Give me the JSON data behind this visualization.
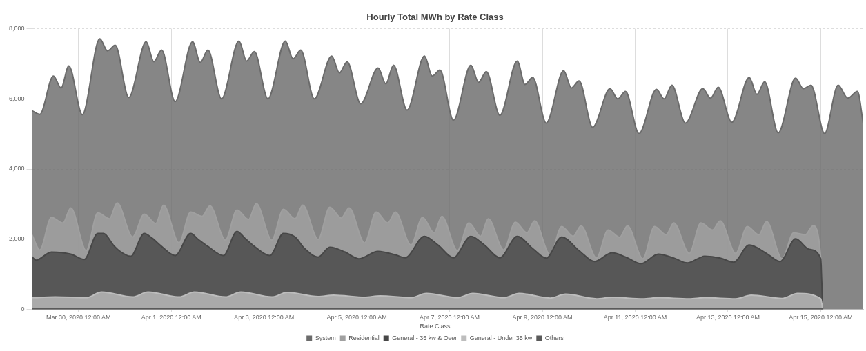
{
  "chart_data": {
    "type": "area",
    "title": "Hourly Total MWh by Rate Class",
    "legend_title": "Rate Class",
    "legend": "bottom",
    "grid": true,
    "xlim": [
      "2020-03-29T00:00",
      "2020-04-15T22:00"
    ],
    "xticks": [
      {
        "value": "2020-03-30T00:00",
        "label": "Mar 30, 2020 12:00 AM"
      },
      {
        "value": "2020-04-01T00:00",
        "label": "Apr 1, 2020 12:00 AM"
      },
      {
        "value": "2020-04-03T00:00",
        "label": "Apr 3, 2020 12:00 AM"
      },
      {
        "value": "2020-04-05T00:00",
        "label": "Apr 5, 2020 12:00 AM"
      },
      {
        "value": "2020-04-07T00:00",
        "label": "Apr 7, 2020 12:00 AM"
      },
      {
        "value": "2020-04-09T00:00",
        "label": "Apr 9, 2020 12:00 AM"
      },
      {
        "value": "2020-04-11T00:00",
        "label": "Apr 11, 2020 12:00 AM"
      },
      {
        "value": "2020-04-13T00:00",
        "label": "Apr 13, 2020 12:00 AM"
      },
      {
        "value": "2020-04-15T00:00",
        "label": "Apr 15, 2020 12:00 AM"
      }
    ],
    "ylim": [
      0,
      8000
    ],
    "yticks": [
      0,
      {
        "value": 2000,
        "label": "2,000"
      },
      {
        "value": 4000,
        "label": "4,000"
      },
      {
        "value": 6000,
        "label": "6,000"
      },
      {
        "value": 8000,
        "label": "8,000"
      }
    ],
    "series": [
      {
        "name": "System",
        "color": "#6b6b6b",
        "x": [
          "2020-03-29T00:00",
          "2020-03-29T04:00",
          "2020-03-29T11:00",
          "2020-03-29T15:00",
          "2020-03-29T19:00",
          "2020-03-30T02:00",
          "2020-03-30T11:00",
          "2020-03-30T15:00",
          "2020-03-30T19:00",
          "2020-03-31T02:00",
          "2020-03-31T11:00",
          "2020-03-31T15:00",
          "2020-03-31T19:00",
          "2020-04-01T02:00",
          "2020-04-01T11:00",
          "2020-04-01T15:00",
          "2020-04-01T19:00",
          "2020-04-02T02:00",
          "2020-04-02T11:00",
          "2020-04-02T15:00",
          "2020-04-02T19:00",
          "2020-04-03T02:00",
          "2020-04-03T11:00",
          "2020-04-03T15:00",
          "2020-04-03T19:00",
          "2020-04-04T02:00",
          "2020-04-04T11:00",
          "2020-04-04T15:00",
          "2020-04-04T19:00",
          "2020-04-05T02:00",
          "2020-04-05T11:00",
          "2020-04-05T15:00",
          "2020-04-05T19:00",
          "2020-04-06T02:00",
          "2020-04-06T11:00",
          "2020-04-06T15:00",
          "2020-04-06T19:00",
          "2020-04-07T02:00",
          "2020-04-07T11:00",
          "2020-04-07T15:00",
          "2020-04-07T19:00",
          "2020-04-08T02:00",
          "2020-04-08T11:00",
          "2020-04-08T15:00",
          "2020-04-08T19:00",
          "2020-04-09T02:00",
          "2020-04-09T11:00",
          "2020-04-09T15:00",
          "2020-04-09T19:00",
          "2020-04-10T02:00",
          "2020-04-10T11:00",
          "2020-04-10T15:00",
          "2020-04-10T19:00",
          "2020-04-11T02:00",
          "2020-04-11T11:00",
          "2020-04-11T15:00",
          "2020-04-11T19:00",
          "2020-04-12T02:00",
          "2020-04-12T11:00",
          "2020-04-12T15:00",
          "2020-04-12T19:00",
          "2020-04-13T02:00",
          "2020-04-13T11:00",
          "2020-04-13T15:00",
          "2020-04-13T19:00",
          "2020-04-14T02:00",
          "2020-04-14T11:00",
          "2020-04-14T15:00",
          "2020-04-14T19:00",
          "2020-04-15T02:00",
          "2020-04-15T09:00",
          "2020-04-15T14:00",
          "2020-04-15T19:00",
          "2020-04-15T22:00"
        ],
        "values": [
          5660,
          5560,
          6650,
          6310,
          6940,
          5550,
          7710,
          7370,
          7530,
          6040,
          7630,
          7060,
          7390,
          5920,
          7630,
          7040,
          7390,
          6000,
          7650,
          7080,
          7350,
          6000,
          7650,
          7140,
          7390,
          6000,
          7220,
          6740,
          7060,
          5860,
          6880,
          6430,
          6960,
          5680,
          7220,
          6650,
          6820,
          5390,
          6960,
          6470,
          6780,
          5530,
          7080,
          6410,
          6610,
          5310,
          6800,
          6310,
          6510,
          5190,
          6290,
          6000,
          6210,
          5010,
          6270,
          6000,
          6390,
          5310,
          6290,
          6020,
          6330,
          5330,
          6610,
          6130,
          6490,
          5030,
          6590,
          6290,
          6390,
          5010,
          6390,
          6020,
          6210,
          5300
        ]
      },
      {
        "name": "Residential",
        "color": "#a0a0a0",
        "x": [
          "2020-03-29T00:00",
          "2020-03-29T04:00",
          "2020-03-29T10:00",
          "2020-03-29T16:00",
          "2020-03-29T20:00",
          "2020-03-30T04:00",
          "2020-03-30T10:00",
          "2020-03-30T16:00",
          "2020-03-30T20:00",
          "2020-03-31T04:00",
          "2020-03-31T10:00",
          "2020-03-31T16:00",
          "2020-03-31T20:00",
          "2020-04-01T04:00",
          "2020-04-01T10:00",
          "2020-04-01T16:00",
          "2020-04-01T20:00",
          "2020-04-02T04:00",
          "2020-04-02T10:00",
          "2020-04-02T16:00",
          "2020-04-02T20:00",
          "2020-04-03T04:00",
          "2020-04-03T10:00",
          "2020-04-03T16:00",
          "2020-04-03T20:00",
          "2020-04-04T04:00",
          "2020-04-04T10:00",
          "2020-04-04T16:00",
          "2020-04-04T20:00",
          "2020-04-05T04:00",
          "2020-04-05T10:00",
          "2020-04-05T16:00",
          "2020-04-05T20:00",
          "2020-04-06T04:00",
          "2020-04-06T10:00",
          "2020-04-06T16:00",
          "2020-04-06T20:00",
          "2020-04-07T04:00",
          "2020-04-07T10:00",
          "2020-04-07T16:00",
          "2020-04-07T20:00",
          "2020-04-08T04:00",
          "2020-04-08T10:00",
          "2020-04-08T16:00",
          "2020-04-08T20:00",
          "2020-04-09T04:00",
          "2020-04-09T10:00",
          "2020-04-09T16:00",
          "2020-04-09T20:00",
          "2020-04-10T04:00",
          "2020-04-10T10:00",
          "2020-04-10T16:00",
          "2020-04-10T20:00",
          "2020-04-11T04:00",
          "2020-04-11T10:00",
          "2020-04-11T16:00",
          "2020-04-11T20:00",
          "2020-04-12T04:00",
          "2020-04-12T10:00",
          "2020-04-12T16:00",
          "2020-04-12T20:00",
          "2020-04-13T04:00",
          "2020-04-13T10:00",
          "2020-04-13T16:00",
          "2020-04-13T20:00",
          "2020-04-14T04:00",
          "2020-04-14T10:00",
          "2020-04-14T16:00",
          "2020-04-14T20:00",
          "2020-04-15T00:00",
          "2020-04-15T01:00"
        ],
        "values": [
          2120,
          1690,
          2620,
          2460,
          2890,
          1670,
          2750,
          2580,
          3030,
          2060,
          2710,
          2440,
          2970,
          1890,
          2770,
          2650,
          2950,
          1970,
          2830,
          2560,
          3010,
          1970,
          2850,
          2580,
          2970,
          1990,
          2910,
          2600,
          2890,
          1890,
          2770,
          2460,
          2770,
          1830,
          2620,
          2180,
          2650,
          1670,
          2460,
          2080,
          2580,
          1690,
          2480,
          2180,
          2520,
          1550,
          2360,
          2080,
          2380,
          1460,
          2260,
          2050,
          2380,
          1440,
          2360,
          2120,
          2460,
          1590,
          2460,
          2260,
          2520,
          1590,
          2360,
          2120,
          2500,
          1440,
          2180,
          2120,
          2380,
          1470,
          0
        ]
      },
      {
        "name": "General - 35 kw & Over",
        "color": "#474747",
        "x": [
          "2020-03-29T00:00",
          "2020-03-29T02:00",
          "2020-03-29T10:00",
          "2020-03-29T20:00",
          "2020-03-30T03:00",
          "2020-03-30T10:00",
          "2020-03-30T13:00",
          "2020-03-30T18:00",
          "2020-03-30T21:00",
          "2020-03-31T03:00",
          "2020-03-31T10:00",
          "2020-03-31T14:00",
          "2020-03-31T19:00",
          "2020-04-01T02:00",
          "2020-04-01T10:00",
          "2020-04-01T14:00",
          "2020-04-01T19:00",
          "2020-04-02T03:00",
          "2020-04-02T10:00",
          "2020-04-02T14:00",
          "2020-04-02T19:00",
          "2020-04-03T03:00",
          "2020-04-03T10:00",
          "2020-04-03T16:00",
          "2020-04-03T21:00",
          "2020-04-04T04:00",
          "2020-04-04T10:00",
          "2020-04-04T18:00",
          "2020-04-05T01:00",
          "2020-04-05T11:00",
          "2020-04-05T20:00",
          "2020-04-06T01:00",
          "2020-04-06T11:00",
          "2020-04-06T18:00",
          "2020-04-07T02:00",
          "2020-04-07T11:00",
          "2020-04-07T18:00",
          "2020-04-08T02:00",
          "2020-04-08T11:00",
          "2020-04-08T19:00",
          "2020-04-09T02:00",
          "2020-04-09T10:00",
          "2020-04-09T19:00",
          "2020-04-10T03:00",
          "2020-04-10T12:00",
          "2020-04-10T19:00",
          "2020-04-11T03:00",
          "2020-04-11T12:00",
          "2020-04-11T20:00",
          "2020-04-12T03:00",
          "2020-04-12T12:00",
          "2020-04-12T20:00",
          "2020-04-13T03:00",
          "2020-04-13T11:00",
          "2020-04-13T20:00",
          "2020-04-14T03:00",
          "2020-04-14T11:00",
          "2020-04-14T18:00",
          "2020-04-15T00:00",
          "2020-04-15T01:00"
        ],
        "values": [
          1490,
          1400,
          1630,
          1570,
          1420,
          2160,
          2160,
          1830,
          1670,
          1510,
          2160,
          2030,
          1790,
          1530,
          2160,
          1990,
          1790,
          1530,
          2220,
          2030,
          1790,
          1530,
          2160,
          2060,
          1730,
          1490,
          1770,
          1630,
          1440,
          1650,
          1550,
          1470,
          2080,
          1830,
          1470,
          2080,
          1830,
          1470,
          2080,
          1730,
          1460,
          2060,
          1670,
          1360,
          1610,
          1490,
          1300,
          1570,
          1460,
          1320,
          1510,
          1460,
          1340,
          1830,
          1590,
          1360,
          2010,
          1710,
          1440,
          0
        ]
      },
      {
        "name": "General - Under 35 kw",
        "color": "#bdbdbd",
        "x": [
          "2020-03-29T00:00",
          "2020-03-29T12:00",
          "2020-03-30T04:00",
          "2020-03-30T12:00",
          "2020-03-31T04:00",
          "2020-03-31T12:00",
          "2020-04-01T04:00",
          "2020-04-01T12:00",
          "2020-04-02T04:00",
          "2020-04-02T12:00",
          "2020-04-03T04:00",
          "2020-04-03T12:00",
          "2020-04-04T04:00",
          "2020-04-04T12:00",
          "2020-04-05T04:00",
          "2020-04-05T12:00",
          "2020-04-06T04:00",
          "2020-04-06T12:00",
          "2020-04-07T04:00",
          "2020-04-07T12:00",
          "2020-04-08T04:00",
          "2020-04-08T12:00",
          "2020-04-09T04:00",
          "2020-04-09T12:00",
          "2020-04-10T04:00",
          "2020-04-10T12:00",
          "2020-04-11T04:00",
          "2020-04-11T12:00",
          "2020-04-12T04:00",
          "2020-04-12T12:00",
          "2020-04-13T04:00",
          "2020-04-13T12:00",
          "2020-04-14T04:00",
          "2020-04-14T12:00",
          "2020-04-15T00:00",
          "2020-04-15T01:00"
        ],
        "values": [
          330,
          350,
          330,
          490,
          350,
          490,
          350,
          490,
          350,
          490,
          350,
          480,
          360,
          400,
          340,
          380,
          330,
          450,
          330,
          450,
          330,
          450,
          320,
          430,
          300,
          340,
          300,
          330,
          300,
          330,
          300,
          400,
          310,
          450,
          300,
          0
        ]
      },
      {
        "name": "Others",
        "color": "#5a5a5a",
        "x": [
          "2020-03-29T00:00",
          "2020-04-15T00:00",
          "2020-04-15T01:00"
        ],
        "values": [
          20,
          20,
          0
        ]
      }
    ]
  }
}
